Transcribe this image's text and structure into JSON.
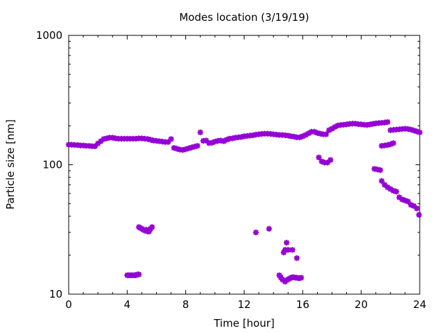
{
  "chart_data": {
    "type": "scatter",
    "title": "Modes location (3/19/19)",
    "xlabel": "Time [hour]",
    "ylabel": "Particle size [nm]",
    "xlim": [
      0,
      24
    ],
    "ylim": [
      10,
      1000
    ],
    "yscale": "log",
    "grid": false,
    "x_ticks": [
      0,
      4,
      8,
      12,
      16,
      20,
      24
    ],
    "x_tick_labels": [
      "0",
      "4",
      "8",
      "12",
      "16",
      "20",
      "24"
    ],
    "y_ticks": [
      10,
      100,
      1000
    ],
    "y_tick_labels": [
      "10",
      "100",
      "1000"
    ],
    "marker_color": "#9400d3",
    "series": [
      {
        "x": [
          0.0,
          0.2,
          0.4,
          0.6,
          0.8,
          1.0,
          1.2,
          1.4,
          1.6,
          1.8,
          2.0,
          2.2,
          2.4,
          2.6,
          2.8,
          3.0,
          3.2,
          3.4,
          3.6,
          3.8,
          4.0,
          4.2,
          4.4,
          4.6,
          4.8,
          5.0,
          5.2,
          5.4,
          5.6,
          5.8,
          6.0,
          6.2,
          6.4,
          6.6,
          6.8,
          7.0,
          7.2,
          7.4,
          7.6,
          7.8,
          8.0,
          8.2,
          8.4,
          8.6,
          8.8,
          9.0,
          9.2,
          9.4,
          9.6,
          9.8,
          10.0,
          10.2,
          10.4,
          10.6,
          10.8,
          11.0,
          11.2,
          11.4,
          11.6,
          11.8,
          12.0,
          12.2,
          12.4,
          12.6,
          12.8,
          13.0,
          13.2,
          13.4,
          13.6,
          13.8,
          14.0,
          14.2,
          14.4,
          14.6,
          14.8,
          15.0,
          15.2,
          15.4,
          15.6,
          15.8,
          16.0,
          16.2,
          16.4,
          16.6,
          16.8,
          17.0,
          17.2,
          17.4,
          17.6,
          17.8,
          18.0,
          18.2,
          18.4,
          18.6,
          18.8,
          19.0,
          19.2,
          19.4,
          19.6,
          19.8,
          20.0,
          20.2,
          20.4,
          20.6,
          20.8,
          21.0,
          21.2,
          21.4,
          21.6,
          21.8,
          22.0,
          22.2,
          22.4,
          22.6,
          22.8,
          23.0,
          23.2,
          23.4,
          23.6,
          23.8,
          24.0
        ],
        "y": [
          143,
          143,
          142,
          142,
          141,
          141,
          140,
          140,
          139,
          139,
          146,
          152,
          158,
          160,
          162,
          162,
          160,
          159,
          159,
          159,
          159,
          159,
          159,
          159,
          160,
          160,
          159,
          158,
          156,
          154,
          153,
          152,
          151,
          150,
          150,
          158,
          135,
          133,
          131,
          130,
          132,
          134,
          136,
          138,
          140,
          178,
          153,
          154,
          147,
          148,
          151,
          153,
          154,
          152,
          156,
          159,
          160,
          162,
          163,
          164,
          166,
          167,
          168,
          169,
          171,
          172,
          173,
          174,
          174,
          173,
          172,
          171,
          170,
          170,
          169,
          168,
          166,
          165,
          163,
          163,
          166,
          170,
          175,
          180,
          180,
          176,
          174,
          172,
          172,
          185,
          190,
          196,
          201,
          203,
          204,
          205,
          207,
          208,
          208,
          206,
          205,
          204,
          203,
          205,
          207,
          209,
          210,
          211,
          212,
          214,
          185,
          186,
          187,
          188,
          189,
          190,
          189,
          187,
          184,
          181,
          178
        ],
        "name": ""
      },
      {
        "x": [
          17.1,
          17.3,
          17.5,
          17.7,
          17.9,
          21.4,
          21.6,
          21.8,
          22.0,
          22.2
        ],
        "y": [
          114,
          106,
          104,
          104,
          109,
          140,
          141,
          142,
          144,
          147
        ],
        "name": ""
      },
      {
        "x": [
          20.9,
          21.1,
          21.3,
          21.4,
          21.6,
          21.8,
          22.0,
          22.2,
          22.4,
          22.6,
          22.8,
          23.0,
          23.2,
          23.4,
          23.6,
          23.8,
          23.95
        ],
        "y": [
          93,
          92,
          91,
          75,
          70,
          67,
          65,
          63,
          62,
          56,
          54,
          53,
          52,
          49,
          48,
          46,
          41
        ],
        "name": ""
      },
      {
        "x": [
          4.8,
          4.9,
          5.0,
          5.1,
          5.2,
          5.3,
          5.4,
          5.5,
          5.6,
          5.7
        ],
        "y": [
          33,
          32.5,
          32,
          31.5,
          31,
          31.5,
          30.5,
          30.5,
          32,
          33
        ],
        "name": ""
      },
      {
        "x": [
          4.0,
          4.1,
          4.2,
          4.3,
          4.4,
          4.5,
          4.6,
          4.7,
          4.8
        ],
        "y": [
          14,
          14,
          14,
          14,
          14,
          14,
          14,
          14.2,
          14.2
        ],
        "name": ""
      },
      {
        "x": [
          12.8,
          13.7,
          14.7,
          14.8,
          14.9,
          15.0,
          15.3,
          15.6
        ],
        "y": [
          30,
          32,
          21,
          22,
          25,
          22,
          22,
          19
        ],
        "name": ""
      },
      {
        "x": [
          14.4,
          14.5,
          14.6,
          14.7,
          14.8,
          14.9,
          15.0,
          15.1,
          15.2,
          15.3,
          15.4,
          15.5,
          15.6,
          15.7,
          15.8,
          15.9
        ],
        "y": [
          14,
          13.5,
          13,
          12.8,
          12.5,
          12.8,
          13,
          13.2,
          13.4,
          13.5,
          13.5,
          13.4,
          13.4,
          13.3,
          13.3,
          13.4
        ],
        "name": ""
      }
    ]
  }
}
